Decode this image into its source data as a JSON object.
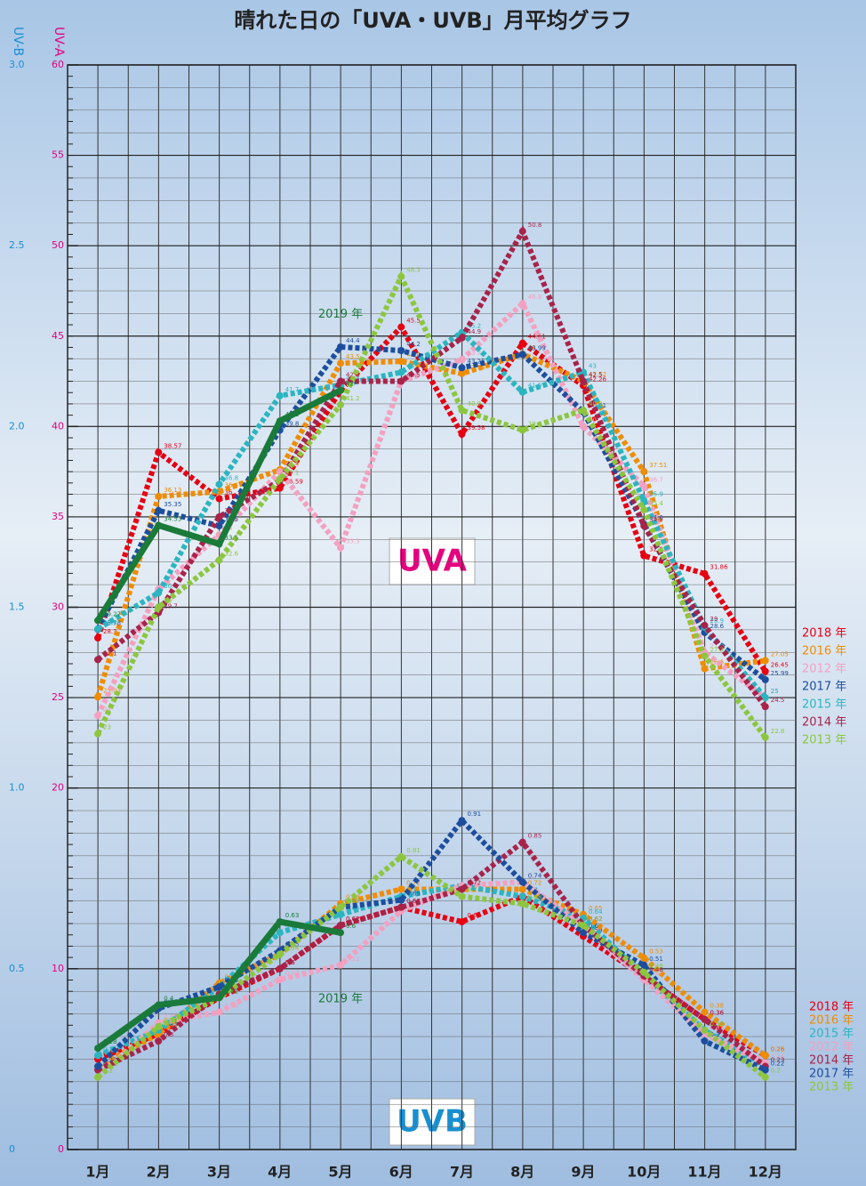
{
  "chart_data": {
    "type": "line",
    "title": "晴れた日の「UVA・UVB」月平均グラフ",
    "y_label": "UV-A",
    "y2_label": "UV-B",
    "annotations": [
      "UVA",
      "UVB"
    ],
    "categories": [
      "1月",
      "2月",
      "3月",
      "4月",
      "5月",
      "6月",
      "7月",
      "8月",
      "9月",
      "10月",
      "11月",
      "12月"
    ],
    "ylim": [
      0,
      60
    ],
    "yticks": [
      0,
      10,
      20,
      25,
      30,
      35,
      40,
      45,
      50,
      55,
      60
    ],
    "y2lim": [
      0,
      3
    ],
    "y2ticks": [
      0,
      0.5,
      {
        "value": 1,
        "label": "1.0"
      },
      1.5,
      {
        "value": 2,
        "label": "2.0"
      },
      2.5,
      {
        "value": 3,
        "label": "3.0"
      }
    ],
    "grid": true,
    "series": [
      {
        "name": "2018 年",
        "color": "#e60012",
        "values": [
          28.3,
          38.57,
          36.0,
          36.59,
          42.0,
          45.5,
          39.58,
          44.61,
          42.26,
          32.85,
          31.86,
          26.45
        ]
      },
      {
        "name": "2016 年",
        "color": "#f08c00",
        "values": [
          25.03,
          36.13,
          36.4,
          37.6,
          43.5,
          43.6,
          42.93,
          44.0,
          42.52,
          37.51,
          26.6,
          27.05
        ]
      },
      {
        "name": "2012 年",
        "color": "#f4a0c0",
        "values": [
          24.0,
          31.0,
          34.0,
          37.5,
          33.3,
          42.5,
          43.7,
          46.8,
          40.0,
          36.7,
          27.5,
          25.0
        ]
      },
      {
        "name": "2017 年",
        "color": "#1d4e9e",
        "values": [
          28.78,
          35.35,
          34.5,
          39.8,
          44.4,
          44.2,
          43.25,
          43.99,
          40.81,
          34.6,
          28.6,
          25.99
        ]
      },
      {
        "name": "2015 年",
        "color": "#2bb5c0",
        "values": [
          28.8,
          30.8,
          36.8,
          41.7,
          42.3,
          43.0,
          45.2,
          41.9,
          43.0,
          35.9,
          28.9,
          25.0
        ]
      },
      {
        "name": "2014 年",
        "color": "#a8234a",
        "values": [
          27.1,
          29.7,
          35.0,
          37.0,
          42.5,
          42.5,
          44.9,
          50.8,
          42.5,
          34.5,
          29.0,
          24.5
        ]
      },
      {
        "name": "2013 年",
        "color": "#8cc63f",
        "values": [
          23.0,
          30.0,
          32.6,
          37.1,
          41.2,
          48.3,
          40.9,
          39.8,
          40.9,
          35.4,
          27.3,
          22.8
        ]
      },
      {
        "name": "2019 年",
        "color": "#1a7a3a",
        "values": [
          29.27,
          34.53,
          33.5,
          40.3,
          42.0,
          null,
          null,
          null,
          null,
          null,
          null,
          null
        ]
      },
      {
        "name": "2018 年",
        "color": "#e60012",
        "axis": "y2",
        "values": [
          0.25,
          0.32,
          0.42,
          0.5,
          0.62,
          0.67,
          0.63,
          0.7,
          0.59,
          0.48,
          0.36,
          0.26
        ]
      },
      {
        "name": "2016 年",
        "color": "#f08c00",
        "axis": "y2",
        "values": [
          0.23,
          0.32,
          0.46,
          0.54,
          0.68,
          0.72,
          0.72,
          0.72,
          0.65,
          0.53,
          0.38,
          0.26
        ]
      },
      {
        "name": "2015 年",
        "color": "#2bb5c0",
        "axis": "y2",
        "values": [
          0.26,
          0.33,
          0.45,
          0.6,
          0.65,
          0.7,
          0.73,
          0.7,
          0.64,
          0.48,
          0.33,
          0.23
        ]
      },
      {
        "name": "2012 年",
        "color": "#f4a0c0",
        "axis": "y2",
        "values": [
          0.2,
          0.35,
          0.38,
          0.47,
          0.51,
          0.66,
          0.73,
          0.74,
          0.62,
          0.47,
          0.32,
          0.24
        ]
      },
      {
        "name": "2014 年",
        "color": "#a8234a",
        "axis": "y2",
        "values": [
          0.22,
          0.3,
          0.43,
          0.5,
          0.62,
          0.67,
          0.72,
          0.85,
          0.62,
          0.48,
          0.36,
          0.23
        ]
      },
      {
        "name": "2017 年",
        "color": "#1d4e9e",
        "axis": "y2",
        "values": [
          0.23,
          0.39,
          0.45,
          0.55,
          0.67,
          0.69,
          0.91,
          0.74,
          0.6,
          0.51,
          0.3,
          0.22
        ]
      },
      {
        "name": "2013 年",
        "color": "#8cc63f",
        "axis": "y2",
        "values": [
          0.2,
          0.34,
          0.42,
          0.54,
          0.67,
          0.81,
          0.7,
          0.68,
          0.62,
          0.49,
          0.33,
          0.2
        ]
      },
      {
        "name": "2019 年",
        "color": "#1a7a3a",
        "axis": "y2",
        "values": [
          0.28,
          0.4,
          0.42,
          0.63,
          0.6,
          null,
          null,
          null,
          null,
          null,
          null,
          null
        ]
      }
    ]
  }
}
